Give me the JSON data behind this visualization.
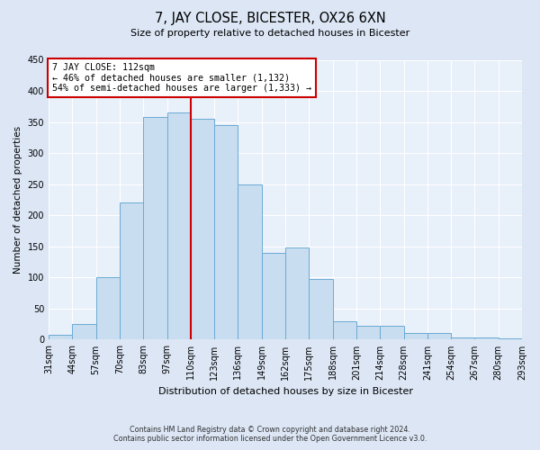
{
  "title": "7, JAY CLOSE, BICESTER, OX26 6XN",
  "subtitle": "Size of property relative to detached houses in Bicester",
  "xlabel": "Distribution of detached houses by size in Bicester",
  "ylabel": "Number of detached properties",
  "bin_labels": [
    "31sqm",
    "44sqm",
    "57sqm",
    "70sqm",
    "83sqm",
    "97sqm",
    "110sqm",
    "123sqm",
    "136sqm",
    "149sqm",
    "162sqm",
    "175sqm",
    "188sqm",
    "201sqm",
    "214sqm",
    "228sqm",
    "241sqm",
    "254sqm",
    "267sqm",
    "280sqm",
    "293sqm"
  ],
  "bar_heights": [
    8,
    25,
    100,
    220,
    358,
    365,
    355,
    345,
    250,
    140,
    148,
    97,
    29,
    22,
    22,
    11,
    11,
    3,
    3,
    2
  ],
  "bar_color": "#c9ddf0",
  "bar_edge_color": "#6aaad4",
  "ylim": [
    0,
    450
  ],
  "yticks": [
    0,
    50,
    100,
    150,
    200,
    250,
    300,
    350,
    400,
    450
  ],
  "vline_color": "#cc0000",
  "annotation_title": "7 JAY CLOSE: 112sqm",
  "annotation_line1": "← 46% of detached houses are smaller (1,132)",
  "annotation_line2": "54% of semi-detached houses are larger (1,333) →",
  "annotation_box_color": "#cc0000",
  "footer_line1": "Contains HM Land Registry data © Crown copyright and database right 2024.",
  "footer_line2": "Contains public sector information licensed under the Open Government Licence v3.0.",
  "bg_color": "#dce6f5",
  "plot_bg_color": "#e8f0fa"
}
